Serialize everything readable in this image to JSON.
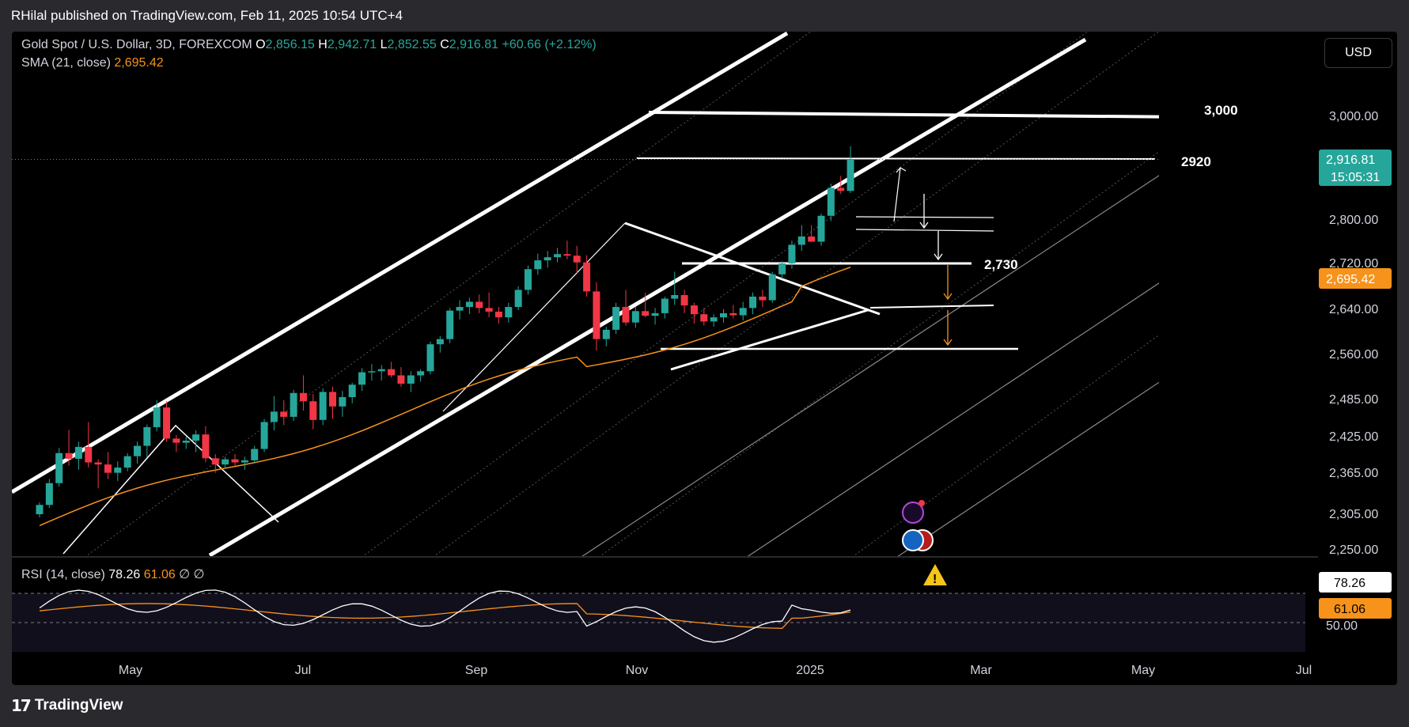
{
  "header": {
    "attribution": "RHilal published on TradingView.com, Feb 11, 2025 10:54 UTC+4"
  },
  "legend": {
    "symbol": "Gold Spot / U.S. Dollar, 3D, FOREXCOM",
    "o_label": "O",
    "o_value": "2,856.15",
    "h_label": "H",
    "h_value": "2,942.71",
    "l_label": "L",
    "l_value": "2,852.55",
    "c_label": "C",
    "c_value": "2,916.81",
    "change": "+60.66 (+2.12%)",
    "sma_label": "SMA (21, close)",
    "sma_value": "2,695.42",
    "rsi_label": "RSI (14, close)",
    "rsi_value": "78.26",
    "rsi_ma_value": "61.06",
    "rsi_extra1": "∅",
    "rsi_extra2": "∅"
  },
  "currency_button": "USD",
  "brand": {
    "name": "TradingView",
    "logo": "17"
  },
  "colors": {
    "up": "#26a69a",
    "down": "#f23645",
    "sma": "#f7931a",
    "rsi": "#ffffff",
    "rsi_ma": "#f7931a",
    "background": "#000000",
    "frame": "#2a2a2e"
  },
  "chart_data": {
    "type": "candlestick",
    "symbol": "XAUUSD",
    "timeframe": "3D",
    "y_ticks": [
      "3,000.00",
      "2,800.00",
      "2,720.00",
      "2,640.00",
      "2,560.00",
      "2,485.00",
      "2,425.00",
      "2,365.00",
      "2,305.00",
      "2,250.00"
    ],
    "x_ticks": [
      "May",
      "Jul",
      "Sep",
      "Nov",
      "2025",
      "Mar",
      "May",
      "Jul"
    ],
    "price_tags": [
      {
        "label": "2,916.81",
        "sub": "15:05:31",
        "value": 2916.81,
        "color": "#26a69a"
      },
      {
        "label": "2,695.42",
        "value": 2695.42,
        "color": "#f7931a"
      }
    ],
    "levels": [
      {
        "label": "3,000",
        "value": 3000
      },
      {
        "label": "2920",
        "value": 2920
      },
      {
        "label": "2,730",
        "value": 2730
      }
    ],
    "candles": [
      [
        2232,
        2255,
        2226,
        2250
      ],
      [
        2250,
        2300,
        2244,
        2292
      ],
      [
        2292,
        2360,
        2285,
        2350
      ],
      [
        2350,
        2395,
        2326,
        2339
      ],
      [
        2339,
        2372,
        2318,
        2362
      ],
      [
        2362,
        2410,
        2322,
        2332
      ],
      [
        2332,
        2338,
        2282,
        2328
      ],
      [
        2328,
        2352,
        2300,
        2312
      ],
      [
        2312,
        2334,
        2296,
        2322
      ],
      [
        2322,
        2350,
        2315,
        2344
      ],
      [
        2344,
        2372,
        2330,
        2364
      ],
      [
        2364,
        2405,
        2342,
        2400
      ],
      [
        2400,
        2452,
        2392,
        2438
      ],
      [
        2438,
        2450,
        2372,
        2378
      ],
      [
        2378,
        2385,
        2352,
        2370
      ],
      [
        2370,
        2382,
        2358,
        2374
      ],
      [
        2374,
        2394,
        2352,
        2386
      ],
      [
        2386,
        2402,
        2332,
        2340
      ],
      [
        2340,
        2348,
        2312,
        2328
      ],
      [
        2328,
        2343,
        2320,
        2338
      ],
      [
        2338,
        2348,
        2325,
        2332
      ],
      [
        2332,
        2343,
        2318,
        2336
      ],
      [
        2336,
        2364,
        2330,
        2358
      ],
      [
        2358,
        2416,
        2352,
        2410
      ],
      [
        2410,
        2460,
        2394,
        2430
      ],
      [
        2430,
        2452,
        2404,
        2420
      ],
      [
        2420,
        2472,
        2412,
        2466
      ],
      [
        2466,
        2500,
        2432,
        2450
      ],
      [
        2450,
        2464,
        2396,
        2414
      ],
      [
        2414,
        2475,
        2404,
        2468
      ],
      [
        2468,
        2478,
        2416,
        2440
      ],
      [
        2440,
        2470,
        2420,
        2458
      ],
      [
        2458,
        2486,
        2446,
        2482
      ],
      [
        2482,
        2514,
        2470,
        2506
      ],
      [
        2506,
        2522,
        2490,
        2508
      ],
      [
        2508,
        2520,
        2490,
        2512
      ],
      [
        2512,
        2526,
        2496,
        2500
      ],
      [
        2500,
        2516,
        2478,
        2484
      ],
      [
        2484,
        2508,
        2468,
        2500
      ],
      [
        2500,
        2512,
        2488,
        2508
      ],
      [
        2508,
        2565,
        2502,
        2560
      ],
      [
        2560,
        2576,
        2544,
        2570
      ],
      [
        2570,
        2630,
        2562,
        2625
      ],
      [
        2625,
        2645,
        2608,
        2632
      ],
      [
        2632,
        2650,
        2618,
        2642
      ],
      [
        2642,
        2656,
        2620,
        2630
      ],
      [
        2630,
        2660,
        2612,
        2623
      ],
      [
        2623,
        2632,
        2600,
        2612
      ],
      [
        2612,
        2640,
        2602,
        2632
      ],
      [
        2632,
        2672,
        2626,
        2665
      ],
      [
        2665,
        2712,
        2656,
        2705
      ],
      [
        2705,
        2735,
        2694,
        2722
      ],
      [
        2722,
        2740,
        2708,
        2728
      ],
      [
        2728,
        2746,
        2718,
        2734
      ],
      [
        2734,
        2760,
        2724,
        2731
      ],
      [
        2731,
        2750,
        2698,
        2718
      ],
      [
        2718,
        2732,
        2652,
        2662
      ],
      [
        2662,
        2680,
        2548,
        2570
      ],
      [
        2570,
        2594,
        2556,
        2588
      ],
      [
        2588,
        2640,
        2580,
        2632
      ],
      [
        2632,
        2665,
        2596,
        2602
      ],
      [
        2602,
        2632,
        2592,
        2624
      ],
      [
        2624,
        2660,
        2612,
        2615
      ],
      [
        2615,
        2630,
        2598,
        2620
      ],
      [
        2620,
        2652,
        2610,
        2648
      ],
      [
        2648,
        2700,
        2636,
        2655
      ],
      [
        2655,
        2665,
        2620,
        2635
      ],
      [
        2635,
        2640,
        2600,
        2618
      ],
      [
        2618,
        2630,
        2596,
        2604
      ],
      [
        2604,
        2618,
        2594,
        2612
      ],
      [
        2612,
        2628,
        2602,
        2620
      ],
      [
        2620,
        2636,
        2610,
        2616
      ],
      [
        2616,
        2642,
        2606,
        2630
      ],
      [
        2630,
        2660,
        2618,
        2652
      ],
      [
        2652,
        2665,
        2632,
        2645
      ],
      [
        2645,
        2700,
        2640,
        2695
      ],
      [
        2695,
        2720,
        2686,
        2716
      ],
      [
        2716,
        2760,
        2706,
        2752
      ],
      [
        2752,
        2790,
        2740,
        2768
      ],
      [
        2768,
        2790,
        2758,
        2758
      ],
      [
        2758,
        2812,
        2750,
        2808
      ],
      [
        2808,
        2870,
        2798,
        2862
      ],
      [
        2862,
        2885,
        2850,
        2856
      ],
      [
        2856,
        2942,
        2852,
        2916
      ]
    ],
    "sma": {
      "name": "SMA (21, close)",
      "start": 2210,
      "end": 2695.42
    },
    "rsi": {
      "levels": [
        70,
        50
      ],
      "axis_label": "50.00",
      "value": 78.26,
      "ma": 61.06
    }
  }
}
